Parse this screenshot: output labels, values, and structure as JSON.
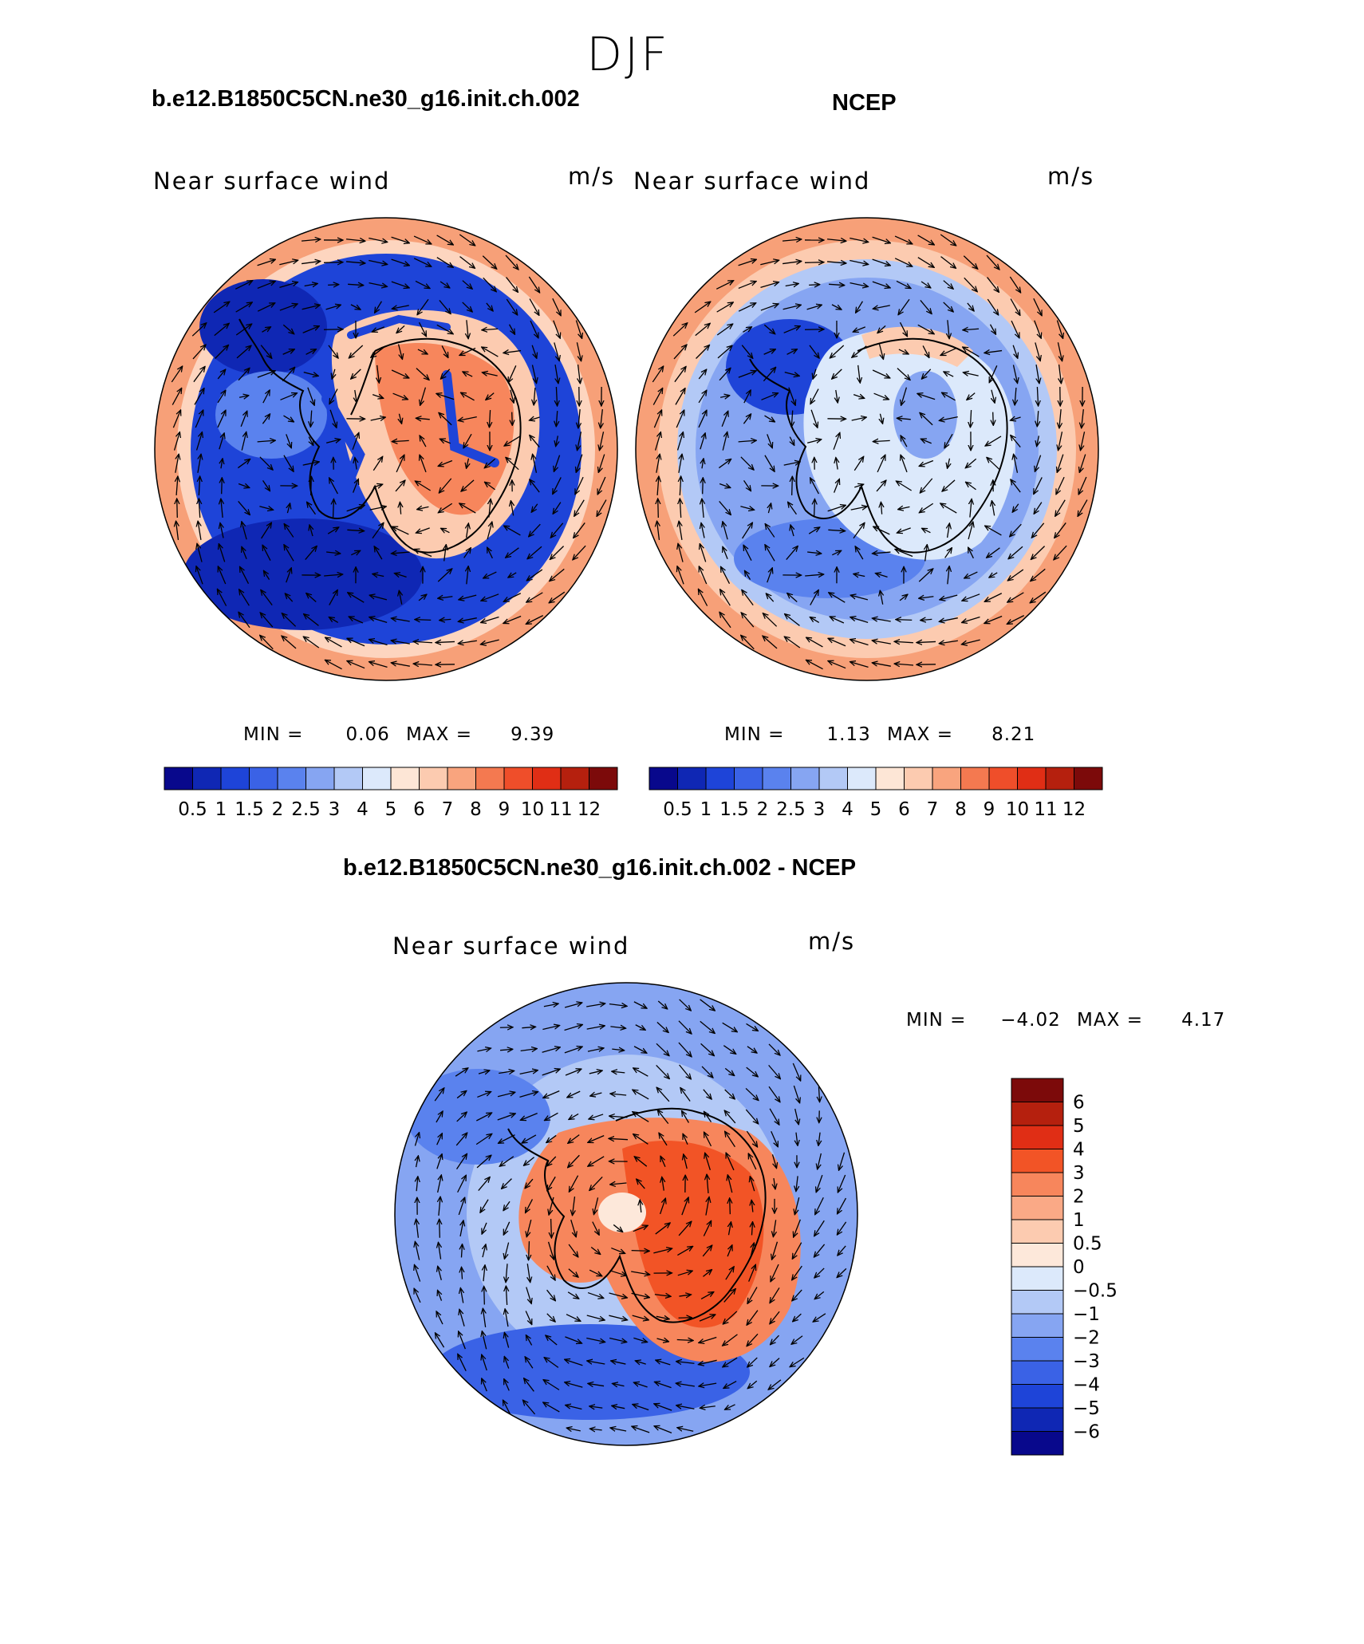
{
  "title": "DJF",
  "panels": [
    {
      "id": "model",
      "title": "b.e12.B1850C5CN.ne30_g16.init.ch.002",
      "variable": "Near surface wind",
      "units": "m/s",
      "min_text": "MIN =",
      "min_value": "0.06",
      "max_text": "MAX =",
      "max_value": "9.39"
    },
    {
      "id": "obs",
      "title": "NCEP",
      "variable": "Near surface wind",
      "units": "m/s",
      "min_text": "MIN =",
      "min_value": "1.13",
      "max_text": "MAX =",
      "max_value": "8.21"
    },
    {
      "id": "diff",
      "title": "b.e12.B1850C5CN.ne30_g16.init.ch.002 - NCEP",
      "variable": "Near surface wind",
      "units": "m/s",
      "min_text": "MIN =",
      "min_value": "−4.02",
      "max_text": "MAX =",
      "max_value": "4.17"
    }
  ],
  "colorbars": {
    "speed": {
      "labels": [
        "0.5",
        "1",
        "1.5",
        "2",
        "2.5",
        "3",
        "4",
        "5",
        "6",
        "7",
        "8",
        "9",
        "10",
        "11",
        "12"
      ],
      "colors": [
        "#08088c",
        "#0f27b4",
        "#1e44d8",
        "#3a62e6",
        "#5a82ee",
        "#86a5f2",
        "#b3c9f6",
        "#dce9fb",
        "#fde6d6",
        "#fccbb0",
        "#f9a47e",
        "#f47950",
        "#ef4e2a",
        "#e02e15",
        "#b5200e",
        "#7c0a0a"
      ]
    },
    "diff": {
      "labels": [
        "6",
        "5",
        "4",
        "3",
        "2",
        "1",
        "0.5",
        "0",
        "−0.5",
        "−1",
        "−2",
        "−3",
        "−4",
        "−5",
        "−6"
      ],
      "colors": [
        "#7c0a0a",
        "#b5200e",
        "#e02e15",
        "#f25426",
        "#f7865c",
        "#faa986",
        "#fccbb0",
        "#fde8da",
        "#dce9fb",
        "#b3c9f6",
        "#86a5f2",
        "#5a82ee",
        "#3a62e6",
        "#1e44d8",
        "#0f27b4",
        "#08088c"
      ]
    }
  },
  "chart_data": [
    {
      "type": "heatmap",
      "title": "b.e12.B1850C5CN.ne30_g16.init.ch.002",
      "variable": "Near surface wind",
      "units": "m/s",
      "projection": "south polar stereographic",
      "min": 0.06,
      "max": 9.39,
      "levels": [
        0.5,
        1,
        1.5,
        2,
        2.5,
        3,
        4,
        5,
        6,
        7,
        8,
        9,
        10,
        11,
        12
      ],
      "overlay": "wind vectors"
    },
    {
      "type": "heatmap",
      "title": "NCEP",
      "variable": "Near surface wind",
      "units": "m/s",
      "projection": "south polar stereographic",
      "min": 1.13,
      "max": 8.21,
      "levels": [
        0.5,
        1,
        1.5,
        2,
        2.5,
        3,
        4,
        5,
        6,
        7,
        8,
        9,
        10,
        11,
        12
      ],
      "overlay": "wind vectors"
    },
    {
      "type": "heatmap",
      "title": "b.e12.B1850C5CN.ne30_g16.init.ch.002 - NCEP",
      "variable": "Near surface wind",
      "units": "m/s",
      "projection": "south polar stereographic",
      "min": -4.02,
      "max": 4.17,
      "levels": [
        -6,
        -5,
        -4,
        -3,
        -2,
        -1,
        -0.5,
        0,
        0.5,
        1,
        2,
        3,
        4,
        5,
        6
      ],
      "overlay": "wind vectors"
    }
  ]
}
